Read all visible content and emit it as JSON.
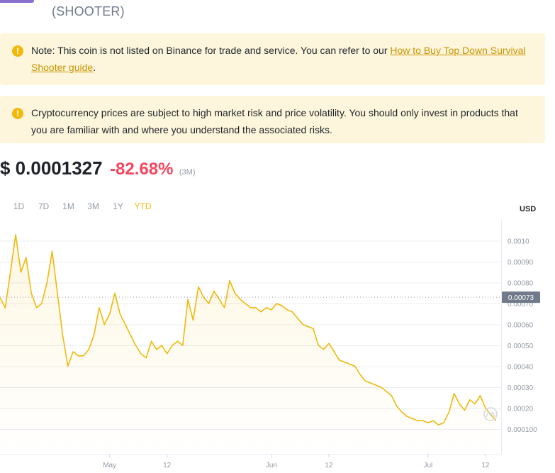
{
  "header": {
    "ticker": "(SHOOTER)"
  },
  "notices": {
    "listing": {
      "text": "Note: This coin is not listed on Binance for trade and service. You can refer to our ",
      "link": "How to Buy Top Down Survival Shooter guide",
      "suffix": "."
    },
    "risk": {
      "text": "Cryptocurrency prices are subject to high market risk and price volatility. You should only invest in products that you are familiar with and where you understand the associated risks."
    }
  },
  "price": {
    "value": "$ 0.0001327",
    "change": "-82.68%",
    "period": "(3M)"
  },
  "range_tabs": [
    {
      "label": "1D",
      "active": false
    },
    {
      "label": "7D",
      "active": false
    },
    {
      "label": "1M",
      "active": false
    },
    {
      "label": "3M",
      "active": false
    },
    {
      "label": "1Y",
      "active": false
    },
    {
      "label": "YTD",
      "active": true
    }
  ],
  "colors": {
    "accent": "#f0b90b",
    "negative": "#f6465d",
    "notice_bg": "#fdf6dc",
    "line": "#f0b90b"
  },
  "chart_data": {
    "type": "line",
    "currency_label": "USD",
    "y_tick_labels": [
      "0.0010",
      "0.00090",
      "0.00080",
      "0.00070",
      "0.00060",
      "0.00050",
      "0.00040",
      "0.00030",
      "0.00020",
      "0.000100"
    ],
    "y_ticks": [
      0.001,
      0.0009,
      0.0008,
      0.0007,
      0.0006,
      0.0005,
      0.0004,
      0.0003,
      0.0002,
      0.0001
    ],
    "ylim": [
      -1.85e-05,
      0.0011
    ],
    "current_price_label": "0.00073",
    "current_price": 0.00073,
    "x_tick_labels": [
      "May",
      "12",
      "Jun",
      "12",
      "Jul",
      "12"
    ],
    "x_ticks": [
      "2022-05-01",
      "2022-05-12",
      "2022-06-01",
      "2022-06-12",
      "2022-07-01",
      "2022-07-12"
    ],
    "xlim": [
      "2022-04-10",
      "2022-07-15"
    ],
    "series": [
      {
        "points": [
          [
            "2022-04-10",
            0.00073
          ],
          [
            "2022-04-11",
            0.00068
          ],
          [
            "2022-04-12",
            0.00085
          ],
          [
            "2022-04-13",
            0.00103
          ],
          [
            "2022-04-14",
            0.00085
          ],
          [
            "2022-04-15",
            0.00092
          ],
          [
            "2022-04-16",
            0.00075
          ],
          [
            "2022-04-17",
            0.00068
          ],
          [
            "2022-04-18",
            0.0007
          ],
          [
            "2022-04-19",
            0.0008
          ],
          [
            "2022-04-20",
            0.00095
          ],
          [
            "2022-04-21",
            0.00075
          ],
          [
            "2022-04-22",
            0.00055
          ],
          [
            "2022-04-23",
            0.0004
          ],
          [
            "2022-04-24",
            0.00047
          ],
          [
            "2022-04-25",
            0.00045
          ],
          [
            "2022-04-26",
            0.00045
          ],
          [
            "2022-04-27",
            0.00048
          ],
          [
            "2022-04-28",
            0.00055
          ],
          [
            "2022-04-29",
            0.00068
          ],
          [
            "2022-04-30",
            0.0006
          ],
          [
            "2022-05-01",
            0.00065
          ],
          [
            "2022-05-02",
            0.00075
          ],
          [
            "2022-05-03",
            0.00065
          ],
          [
            "2022-05-04",
            0.0006
          ],
          [
            "2022-05-05",
            0.00055
          ],
          [
            "2022-05-06",
            0.0005
          ],
          [
            "2022-05-07",
            0.00046
          ],
          [
            "2022-05-08",
            0.00044
          ],
          [
            "2022-05-09",
            0.00052
          ],
          [
            "2022-05-10",
            0.00048
          ],
          [
            "2022-05-11",
            0.0005
          ],
          [
            "2022-05-12",
            0.00046
          ],
          [
            "2022-05-13",
            0.0005
          ],
          [
            "2022-05-14",
            0.00052
          ],
          [
            "2022-05-15",
            0.0005
          ],
          [
            "2022-05-16",
            0.00072
          ],
          [
            "2022-05-17",
            0.00062
          ],
          [
            "2022-05-18",
            0.00078
          ],
          [
            "2022-05-19",
            0.00073
          ],
          [
            "2022-05-20",
            0.0007
          ],
          [
            "2022-05-21",
            0.00076
          ],
          [
            "2022-05-22",
            0.00072
          ],
          [
            "2022-05-23",
            0.00068
          ],
          [
            "2022-05-24",
            0.00081
          ],
          [
            "2022-05-25",
            0.00075
          ],
          [
            "2022-05-26",
            0.00072
          ],
          [
            "2022-05-27",
            0.0007
          ],
          [
            "2022-05-28",
            0.00068
          ],
          [
            "2022-05-29",
            0.00068
          ],
          [
            "2022-05-30",
            0.00066
          ],
          [
            "2022-05-31",
            0.00068
          ],
          [
            "2022-06-01",
            0.00067
          ],
          [
            "2022-06-02",
            0.0007
          ],
          [
            "2022-06-03",
            0.00069
          ],
          [
            "2022-06-04",
            0.00067
          ],
          [
            "2022-06-05",
            0.00066
          ],
          [
            "2022-06-06",
            0.00063
          ],
          [
            "2022-06-07",
            0.0006
          ],
          [
            "2022-06-08",
            0.00059
          ],
          [
            "2022-06-09",
            0.00058
          ],
          [
            "2022-06-10",
            0.0005
          ],
          [
            "2022-06-11",
            0.00048
          ],
          [
            "2022-06-12",
            0.00051
          ],
          [
            "2022-06-13",
            0.00047
          ],
          [
            "2022-06-14",
            0.00043
          ],
          [
            "2022-06-15",
            0.00042
          ],
          [
            "2022-06-16",
            0.00041
          ],
          [
            "2022-06-17",
            0.0004
          ],
          [
            "2022-06-18",
            0.00036
          ],
          [
            "2022-06-19",
            0.00033
          ],
          [
            "2022-06-20",
            0.00032
          ],
          [
            "2022-06-21",
            0.00031
          ],
          [
            "2022-06-22",
            0.0003
          ],
          [
            "2022-06-23",
            0.00028
          ],
          [
            "2022-06-24",
            0.00026
          ],
          [
            "2022-06-25",
            0.00021
          ],
          [
            "2022-06-26",
            0.00018
          ],
          [
            "2022-06-27",
            0.00016
          ],
          [
            "2022-06-28",
            0.00015
          ],
          [
            "2022-06-29",
            0.00014
          ],
          [
            "2022-06-30",
            0.00014
          ],
          [
            "2022-07-01",
            0.00013
          ],
          [
            "2022-07-02",
            0.00014
          ],
          [
            "2022-07-03",
            0.00012
          ],
          [
            "2022-07-04",
            0.00013
          ],
          [
            "2022-07-05",
            0.00018
          ],
          [
            "2022-07-06",
            0.00027
          ],
          [
            "2022-07-07",
            0.00022
          ],
          [
            "2022-07-08",
            0.00019
          ],
          [
            "2022-07-09",
            0.00024
          ],
          [
            "2022-07-10",
            0.00022
          ],
          [
            "2022-07-11",
            0.00026
          ],
          [
            "2022-07-12",
            0.0002
          ],
          [
            "2022-07-13",
            0.00017
          ],
          [
            "2022-07-14",
            0.00014
          ]
        ]
      }
    ],
    "grid": true,
    "legend": "none"
  }
}
